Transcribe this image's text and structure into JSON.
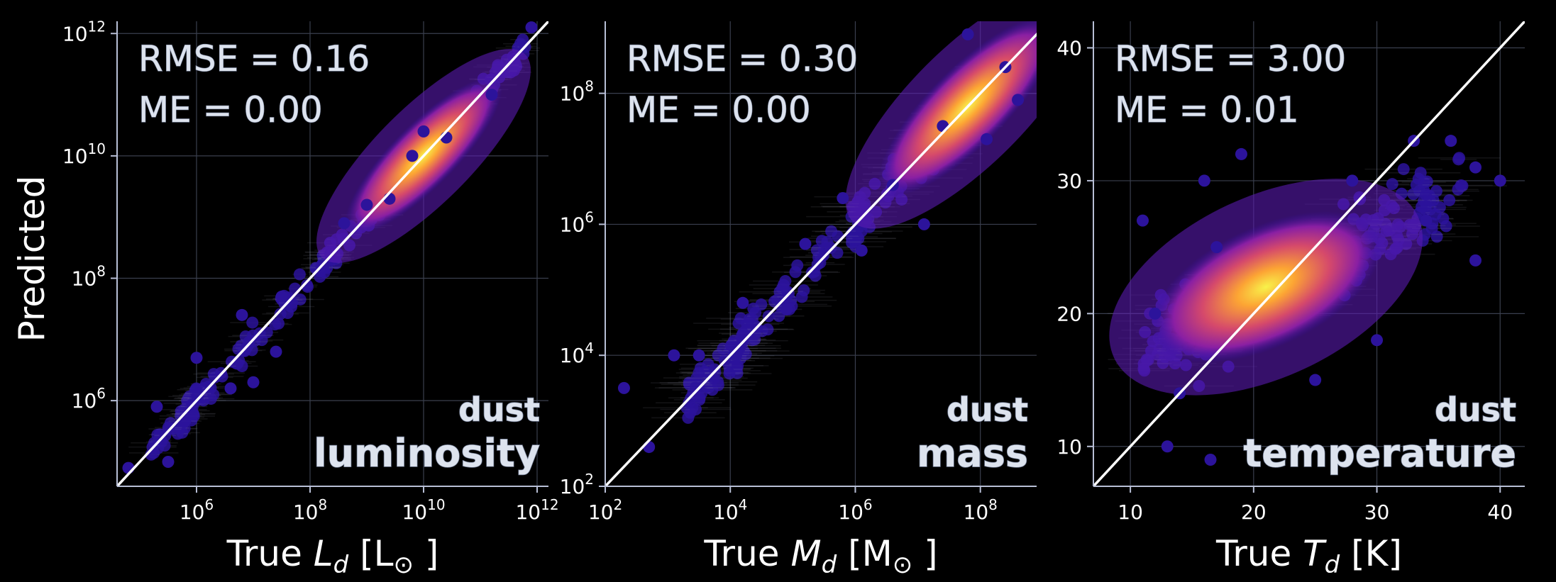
{
  "y_label": "Predicted",
  "colors": {
    "background": "#000000",
    "axis": "#b8bfd6",
    "grid": "#3a3f4e",
    "identity_line": "#ffffff",
    "colormap": "plasma"
  },
  "chart_data": [
    {
      "type": "scatter",
      "quantity": [
        "dust",
        "luminosity"
      ],
      "stats": {
        "rmse": "RMSE = 0.16",
        "me": "ME = 0.00"
      },
      "xlabel": {
        "pre": "True ",
        "sym": "L",
        "sub": "d",
        "post": " [L",
        "postsub": "⊙",
        "end": "]"
      },
      "ylabel": "Predicted",
      "scale": "log",
      "xlim_log10": [
        4.6,
        12.2
      ],
      "ylim_log10": [
        4.6,
        12.2
      ],
      "x_ticks": [
        {
          "base": "10",
          "exp": "6",
          "v": 6
        },
        {
          "base": "10",
          "exp": "8",
          "v": 8
        },
        {
          "base": "10",
          "exp": "10",
          "v": 10
        },
        {
          "base": "10",
          "exp": "12",
          "v": 12
        }
      ],
      "y_ticks": [
        {
          "base": "10",
          "exp": "6",
          "v": 6
        },
        {
          "base": "10",
          "exp": "8",
          "v": 8
        },
        {
          "base": "10",
          "exp": "10",
          "v": 10
        },
        {
          "base": "10",
          "exp": "12",
          "v": 12
        }
      ],
      "identity_line": true,
      "density_core": {
        "x": 10,
        "y": 10
      },
      "points": [
        [
          4.8,
          4.9
        ],
        [
          5.5,
          5.0
        ],
        [
          5.3,
          5.9
        ],
        [
          6.0,
          6.7
        ],
        [
          6.8,
          7.4
        ],
        [
          7.0,
          6.3
        ],
        [
          6.6,
          6.2
        ],
        [
          7.4,
          6.8
        ],
        [
          7.5,
          7.7
        ],
        [
          8.2,
          8.2
        ],
        [
          8.6,
          8.9
        ],
        [
          9.4,
          9.3
        ],
        [
          9.8,
          10.0
        ],
        [
          10.4,
          10.3
        ],
        [
          11.2,
          11.0
        ],
        [
          11.9,
          12.1
        ],
        [
          9.0,
          9.2
        ],
        [
          10.0,
          10.4
        ]
      ],
      "trend": {
        "x0": 5.2,
        "x1": 11.8,
        "slope": 1.0,
        "intercept": 0.0,
        "spread": 0.22
      }
    },
    {
      "type": "scatter",
      "quantity": [
        "dust",
        "mass"
      ],
      "stats": {
        "rmse": "RMSE = 0.30",
        "me": "ME = 0.00"
      },
      "xlabel": {
        "pre": "True ",
        "sym": "M",
        "sub": "d",
        "post": " [M",
        "postsub": "⊙",
        "end": "]"
      },
      "ylabel": "",
      "scale": "log",
      "xlim_log10": [
        2.0,
        8.9
      ],
      "ylim_log10": [
        2.0,
        9.1
      ],
      "x_ticks": [
        {
          "base": "10",
          "exp": "2",
          "v": 2
        },
        {
          "base": "10",
          "exp": "4",
          "v": 4
        },
        {
          "base": "10",
          "exp": "6",
          "v": 6
        },
        {
          "base": "10",
          "exp": "8",
          "v": 8
        }
      ],
      "y_ticks": [
        {
          "base": "10",
          "exp": "2",
          "v": 2
        },
        {
          "base": "10",
          "exp": "4",
          "v": 4
        },
        {
          "base": "10",
          "exp": "6",
          "v": 6
        },
        {
          "base": "10",
          "exp": "8",
          "v": 8
        }
      ],
      "identity_line": true,
      "density_core": {
        "x": 7.8,
        "y": 7.8
      },
      "points": [
        [
          2.3,
          3.5
        ],
        [
          2.7,
          2.6
        ],
        [
          3.1,
          4.0
        ],
        [
          3.5,
          4.0
        ],
        [
          4.2,
          4.8
        ],
        [
          4.9,
          4.7
        ],
        [
          5.2,
          5.7
        ],
        [
          5.8,
          6.4
        ],
        [
          6.1,
          5.6
        ],
        [
          6.6,
          6.6
        ],
        [
          7.1,
          6.0
        ],
        [
          7.4,
          7.5
        ],
        [
          7.8,
          8.9
        ],
        [
          8.4,
          8.4
        ],
        [
          8.1,
          7.3
        ],
        [
          8.6,
          7.9
        ]
      ],
      "trend": {
        "x0": 3.3,
        "x1": 8.6,
        "slope": 1.0,
        "intercept": 0.0,
        "spread": 0.35
      }
    },
    {
      "type": "scatter",
      "quantity": [
        "dust",
        "temperature"
      ],
      "stats": {
        "rmse": "RMSE = 3.00",
        "me": "ME = 0.01"
      },
      "xlabel": {
        "pre": "True ",
        "sym": "T",
        "sub": "d",
        "post": " [K]",
        "postsub": "",
        "end": ""
      },
      "ylabel": "",
      "scale": "linear",
      "xlim": [
        7,
        42
      ],
      "ylim": [
        7,
        42
      ],
      "x_ticks": [
        {
          "base": "10",
          "exp": "",
          "v": 10
        },
        {
          "base": "20",
          "exp": "",
          "v": 20
        },
        {
          "base": "30",
          "exp": "",
          "v": 30
        },
        {
          "base": "40",
          "exp": "",
          "v": 40
        }
      ],
      "y_ticks": [
        {
          "base": "10",
          "exp": "",
          "v": 10
        },
        {
          "base": "20",
          "exp": "",
          "v": 20
        },
        {
          "base": "30",
          "exp": "",
          "v": 30
        },
        {
          "base": "40",
          "exp": "",
          "v": 40
        }
      ],
      "identity_line": true,
      "density_core": {
        "x": 21,
        "y": 22
      },
      "points": [
        [
          11,
          27
        ],
        [
          13,
          10
        ],
        [
          16.5,
          9
        ],
        [
          16,
          30
        ],
        [
          25,
          15
        ],
        [
          33,
          33
        ],
        [
          36,
          33
        ],
        [
          38,
          31
        ],
        [
          40,
          30
        ],
        [
          38,
          24
        ],
        [
          30,
          18
        ],
        [
          17,
          25
        ],
        [
          12,
          20
        ],
        [
          14,
          14
        ],
        [
          19,
          32
        ],
        [
          28,
          30
        ],
        [
          34,
          27
        ]
      ],
      "trend": {
        "x0": 11,
        "x1": 37,
        "slope": 0.45,
        "intercept": 12.5,
        "spread": 3.2
      }
    }
  ]
}
